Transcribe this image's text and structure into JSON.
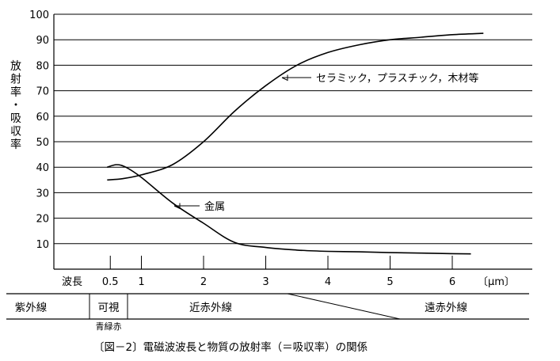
{
  "chart_data": {
    "type": "line",
    "ylabel": "放射率・吸収率",
    "xunit": "〔μm〕",
    "xlabel_prefix": "波長",
    "xlim": [
      0,
      6.5
    ],
    "ylim": [
      0,
      100
    ],
    "x_ticks": [
      0.5,
      1,
      2,
      3,
      4,
      5,
      6
    ],
    "x_tick_labels": [
      "0.5",
      "1",
      "2",
      "3",
      "4",
      "5",
      "6"
    ],
    "y_ticks": [
      10,
      20,
      30,
      40,
      50,
      60,
      70,
      80,
      90,
      100
    ],
    "grid": "horizontal",
    "series": [
      {
        "name": "セラミック，プラスチック，木材等",
        "x": [
          0.45,
          0.7,
          1.0,
          1.5,
          2.0,
          2.5,
          3.0,
          3.5,
          4.0,
          4.5,
          5.0,
          5.5,
          6.0,
          6.5
        ],
        "y": [
          35,
          35.5,
          37,
          41,
          50,
          62,
          72,
          80,
          85,
          88,
          90,
          91,
          92,
          92.5
        ]
      },
      {
        "name": "金属",
        "x": [
          0.45,
          0.6,
          0.75,
          1.0,
          1.5,
          2.0,
          2.5,
          3.0,
          3.5,
          4.0,
          4.5,
          5.0,
          5.5,
          6.0,
          6.3
        ],
        "y": [
          40,
          41,
          40,
          36,
          26,
          18,
          10.5,
          8.5,
          7.5,
          7,
          6.8,
          6.5,
          6.3,
          6.1,
          6
        ]
      }
    ]
  },
  "spectrum": {
    "label_uv": "紫外線",
    "label_visible": "可視",
    "label_visible_colors": "青緑赤",
    "label_near_ir": "近赤外線",
    "label_far_ir": "遠赤外線"
  },
  "caption": "〔図－2〕電磁波波長と物質の放射率（＝吸収率）の関係"
}
